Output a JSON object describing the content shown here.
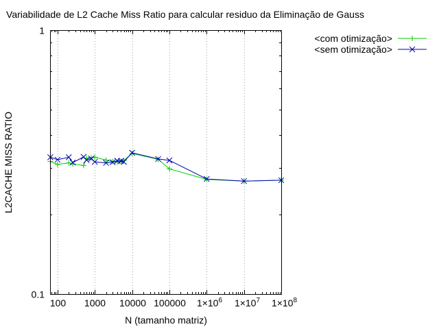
{
  "chart_data": {
    "type": "line",
    "title": "Variabilidade de L2 Cache Miss Ratio para calcular residuo da Eliminação de Gauss",
    "xlabel": "N (tamanho matriz)",
    "ylabel": "L2CACHE MISS RATIO",
    "xscale": "log",
    "yscale": "log",
    "xlim": [
      63,
      100000000
    ],
    "ylim": [
      0.1,
      1
    ],
    "grid": "x",
    "legend_position": "top-right",
    "x_ticks": [
      {
        "value": 100,
        "label": "100"
      },
      {
        "value": 1000,
        "label": "1000"
      },
      {
        "value": 10000,
        "label": "10000"
      },
      {
        "value": 100000,
        "label": "100000"
      },
      {
        "value": 1000000,
        "base": "1×10",
        "exp": "6"
      },
      {
        "value": 10000000,
        "base": "1×10",
        "exp": "7"
      },
      {
        "value": 100000000,
        "base": "1×10",
        "exp": "8"
      }
    ],
    "y_ticks": [
      {
        "value": 0.1,
        "label": "0.1"
      },
      {
        "value": 1,
        "label": "1"
      }
    ],
    "series": [
      {
        "name": "<com otimização>",
        "color": "#00d000",
        "marker": "plus",
        "x": [
          64,
          100,
          200,
          256,
          500,
          600,
          800,
          1000,
          2000,
          3000,
          4000,
          5000,
          6000,
          10000,
          50000,
          100000,
          1000000,
          10000000,
          100000000
        ],
        "y": [
          0.318,
          0.31,
          0.314,
          0.311,
          0.307,
          0.327,
          0.328,
          0.33,
          0.322,
          0.318,
          0.316,
          0.318,
          0.321,
          0.341,
          0.324,
          0.298,
          0.272,
          0.268,
          0.27
        ]
      },
      {
        "name": "<sem otimização>",
        "color": "#0000b0",
        "marker": "cross",
        "x": [
          64,
          100,
          200,
          256,
          500,
          600,
          800,
          1000,
          2000,
          3000,
          4000,
          5000,
          6000,
          10000,
          50000,
          100000,
          1000000,
          10000000,
          100000000
        ],
        "y": [
          0.33,
          0.323,
          0.33,
          0.315,
          0.331,
          0.322,
          0.326,
          0.317,
          0.314,
          0.316,
          0.32,
          0.319,
          0.317,
          0.343,
          0.325,
          0.321,
          0.273,
          0.268,
          0.27
        ]
      }
    ]
  }
}
